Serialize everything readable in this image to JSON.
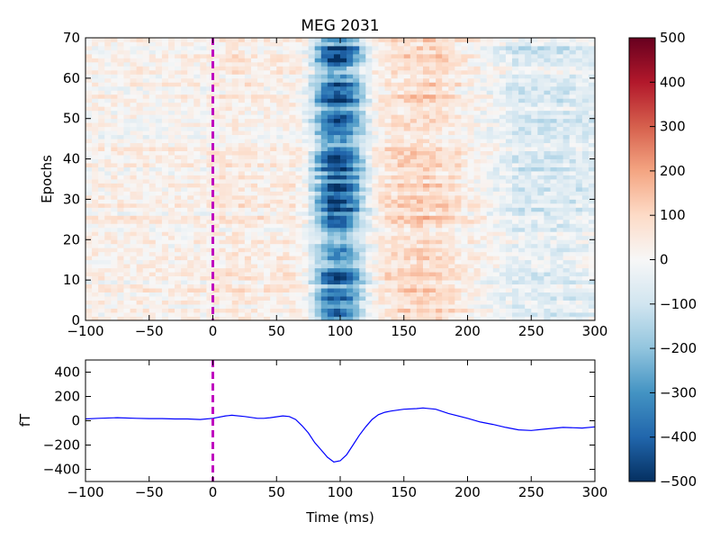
{
  "chart_data": [
    {
      "type": "heatmap",
      "title": "MEG 2031",
      "xlabel": "",
      "ylabel": "Epochs",
      "xlim": [
        -100,
        300
      ],
      "ylim": [
        0,
        70
      ],
      "x_ticks": [
        "−100",
        "−50",
        "0",
        "50",
        "100",
        "150",
        "200",
        "250",
        "300"
      ],
      "y_ticks": [
        "0",
        "10",
        "20",
        "30",
        "40",
        "50",
        "60",
        "70"
      ],
      "n_epochs": 70,
      "time_step_ms": 5,
      "event_marker": {
        "x": 0,
        "color": "#bf00bf",
        "style": "dashed"
      },
      "colormap": "RdBu_r",
      "clim": [
        -500,
        500
      ],
      "colorbar_ticks": [
        "500",
        "400",
        "300",
        "200",
        "100",
        "0",
        "−100",
        "−200",
        "−300",
        "−400",
        "−500"
      ],
      "profile_ms": [
        [
          -100,
          20
        ],
        [
          -50,
          20
        ],
        [
          -5,
          20
        ],
        [
          5,
          40
        ],
        [
          20,
          45
        ],
        [
          40,
          25
        ],
        [
          55,
          40
        ],
        [
          65,
          35
        ],
        [
          72,
          0
        ],
        [
          80,
          -120
        ],
        [
          88,
          -280
        ],
        [
          95,
          -360
        ],
        [
          102,
          -340
        ],
        [
          110,
          -250
        ],
        [
          118,
          -120
        ],
        [
          125,
          0
        ],
        [
          135,
          60
        ],
        [
          150,
          80
        ],
        [
          165,
          100
        ],
        [
          180,
          80
        ],
        [
          200,
          30
        ],
        [
          220,
          -10
        ],
        [
          240,
          -60
        ],
        [
          260,
          -60
        ],
        [
          280,
          -60
        ],
        [
          300,
          -40
        ]
      ]
    },
    {
      "type": "line",
      "xlabel": "Time (ms)",
      "ylabel": "fT",
      "xlim": [
        -100,
        300
      ],
      "ylim": [
        -500,
        500
      ],
      "x_ticks": [
        "−100",
        "−50",
        "0",
        "50",
        "100",
        "150",
        "200",
        "250",
        "300"
      ],
      "y_ticks": [
        "400",
        "200",
        "0",
        "−200",
        "−400"
      ],
      "event_marker": {
        "x": 0,
        "color": "#bf00bf",
        "style": "dashed"
      },
      "series": [
        {
          "color": "#0000ff",
          "x": [
            -100,
            -90,
            -75,
            -60,
            -50,
            -40,
            -30,
            -20,
            -10,
            0,
            10,
            15,
            25,
            35,
            40,
            45,
            55,
            60,
            65,
            70,
            75,
            80,
            85,
            90,
            95,
            100,
            105,
            110,
            115,
            120,
            125,
            130,
            135,
            140,
            150,
            160,
            165,
            175,
            185,
            200,
            210,
            220,
            230,
            240,
            250,
            260,
            275,
            290,
            300
          ],
          "y": [
            15,
            20,
            25,
            20,
            18,
            18,
            15,
            15,
            10,
            20,
            40,
            45,
            35,
            20,
            20,
            25,
            40,
            35,
            10,
            -40,
            -100,
            -180,
            -240,
            -300,
            -340,
            -330,
            -280,
            -200,
            -120,
            -50,
            10,
            50,
            70,
            80,
            95,
            100,
            105,
            95,
            60,
            20,
            -10,
            -30,
            -55,
            -75,
            -80,
            -70,
            -55,
            -60,
            -50
          ]
        }
      ]
    }
  ]
}
